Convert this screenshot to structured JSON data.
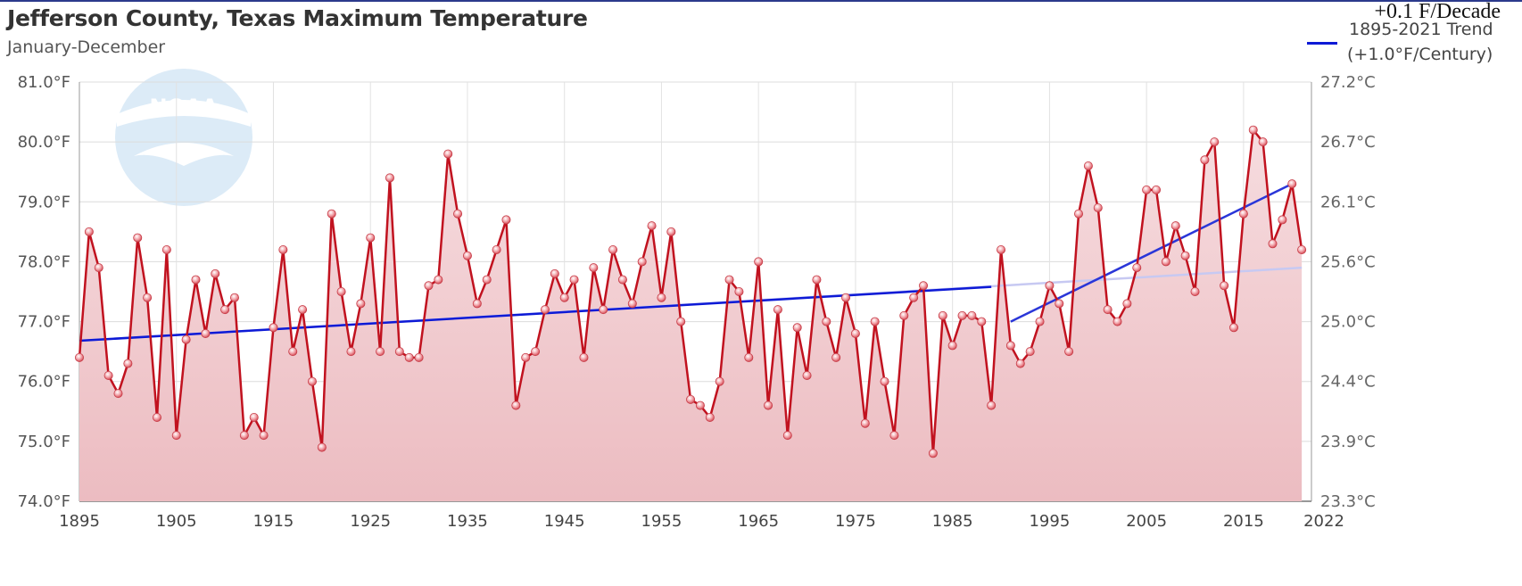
{
  "chart_data": {
    "type": "line",
    "title": "Jefferson County, Texas Maximum Temperature",
    "subtitle": "January-December",
    "annotation": "+0.1 F/Decade",
    "legend": {
      "label_line1": "1895-2021 Trend",
      "label_line2": "(+1.0°F/Century)",
      "placement": "top-right",
      "color": "#0d1ad6"
    },
    "xlim": [
      1895,
      2022
    ],
    "ylim": [
      74.0,
      81.0
    ],
    "x_ticks": [
      1895,
      1905,
      1915,
      1925,
      1935,
      1945,
      1955,
      1965,
      1975,
      1985,
      1995,
      2005,
      2015,
      2022
    ],
    "y_ticks_left": [
      "74.0°F",
      "75.0°F",
      "76.0°F",
      "77.0°F",
      "78.0°F",
      "79.0°F",
      "80.0°F",
      "81.0°F"
    ],
    "y_ticks_right": [
      "23.3°C",
      "23.9°C",
      "24.4°C",
      "25.0°C",
      "25.6°C",
      "26.1°C",
      "26.7°C",
      "27.2°C"
    ],
    "series": [
      {
        "name": "Maximum Temperature",
        "color": "#c1121f",
        "x_start": 1895,
        "values": [
          76.4,
          78.5,
          77.9,
          76.1,
          75.8,
          76.3,
          78.4,
          77.4,
          75.4,
          78.2,
          75.1,
          76.7,
          77.7,
          76.8,
          77.8,
          77.2,
          77.4,
          75.1,
          75.4,
          75.1,
          76.9,
          78.2,
          76.5,
          77.2,
          76.0,
          74.9,
          78.8,
          77.5,
          76.5,
          77.3,
          78.4,
          76.5,
          79.4,
          76.5,
          76.4,
          76.4,
          77.6,
          77.7,
          79.8,
          78.8,
          78.1,
          77.3,
          77.7,
          78.2,
          78.7,
          75.6,
          76.4,
          76.5,
          77.2,
          77.8,
          77.4,
          77.7,
          76.4,
          77.9,
          77.2,
          78.2,
          77.7,
          77.3,
          78.0,
          78.6,
          77.4,
          78.5,
          77.0,
          75.7,
          75.6,
          75.4,
          76.0,
          77.7,
          77.5,
          76.4,
          78.0,
          75.6,
          77.2,
          75.1,
          76.9,
          76.1,
          77.7,
          77.0,
          76.4,
          77.4,
          76.8,
          75.3,
          77.0,
          76.0,
          75.1,
          77.1,
          77.4,
          77.6,
          74.8,
          77.1,
          76.6,
          77.1,
          77.1,
          77.0,
          75.6,
          78.2,
          76.6,
          76.3,
          76.5,
          77.0,
          77.6,
          77.3,
          76.5,
          78.8,
          79.6,
          78.9,
          77.2,
          77.0,
          77.3,
          77.9,
          79.2,
          79.2,
          78.0,
          78.6,
          78.1,
          77.5,
          79.7,
          80.0,
          77.6,
          76.9,
          78.8,
          80.2,
          80.0,
          78.3,
          78.7,
          79.3,
          78.2
        ]
      }
    ],
    "trend_lines": [
      {
        "name": "1895-2021 Trend",
        "x": [
          1895,
          2021
        ],
        "y": [
          76.68,
          77.9
        ],
        "color": "#c7c9f2"
      },
      {
        "name": "1895-1989 Trend",
        "x": [
          1895,
          1989
        ],
        "y": [
          76.68,
          77.58
        ],
        "color": "#0d1ad6"
      },
      {
        "name": "1991-2020 Trend",
        "x": [
          1991,
          2020
        ],
        "y": [
          77.0,
          79.3
        ],
        "color": "#2a36d8"
      }
    ]
  },
  "logo": {
    "text": "NOAA"
  }
}
